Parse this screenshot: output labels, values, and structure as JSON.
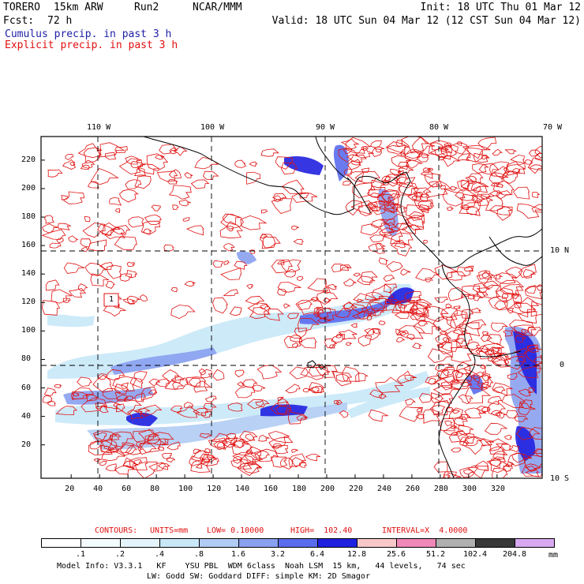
{
  "header": {
    "model": "TORERO",
    "grid": "15km ARW",
    "run": "Run2",
    "org": "NCAR/MMM",
    "init": "Init: 18 UTC Thu 01 Mar 12",
    "fcst_label": "Fcst:",
    "fcst_value": "72 h",
    "valid": "Valid: 18 UTC Sun 04 Mar 12 (12 CST Sun 04 Mar 12)",
    "field1": "Cumulus precip. in past 3 h",
    "field2": "Explicit precip. in past 3 h"
  },
  "map": {
    "lon_labels": [
      "110 W",
      "100 W",
      "90 W",
      "80 W",
      "70 W"
    ],
    "lat_labels": [
      "10 N",
      "0",
      "10 S"
    ],
    "x_ticks": [
      "20",
      "40",
      "60",
      "80",
      "100",
      "120",
      "140",
      "160",
      "180",
      "200",
      "220",
      "240",
      "260",
      "280",
      "300",
      "320"
    ],
    "y_ticks": [
      "20",
      "40",
      "60",
      "80",
      "100",
      "120",
      "140",
      "160",
      "180",
      "200",
      "220"
    ],
    "box_label": "1",
    "colors": {
      "land_line": "#000000",
      "explicit": "#e01010",
      "cumulus_light": "#c8e8f8",
      "cumulus_mid": "#8aa0f0",
      "cumulus_dark": "#2020e0"
    }
  },
  "contour_info": {
    "label": "CONTOURS:",
    "units": "UNITS=mm",
    "low": "LOW= 0.10000",
    "high": "HIGH=  102.40",
    "interval": "INTERVAL=X  4.0000"
  },
  "colorbar": {
    "colors": [
      "#ffffff",
      "#f4fbfe",
      "#e4f4fc",
      "#c8e8f8",
      "#b0ccf4",
      "#8aa0f0",
      "#5a6cee",
      "#2020e0",
      "#f8c8c8",
      "#f088b8",
      "#b0b0b0",
      "#383838",
      "#d8a8f0"
    ],
    "labels": [
      ".1",
      ".2",
      ".4",
      ".8",
      "1.6",
      "3.2",
      "6.4",
      "12.8",
      "25.6",
      "51.2",
      "102.4",
      "204.8"
    ],
    "unit": "mm"
  },
  "footer": {
    "line1": "Model Info: V3.3.1   KF    YSU PBL  WDM 6class  Noah LSM  15 km,   44 levels,   74 sec",
    "line2": "LW: Godd SW: Goddard DIFF: simple KM: 2D Smagor"
  }
}
